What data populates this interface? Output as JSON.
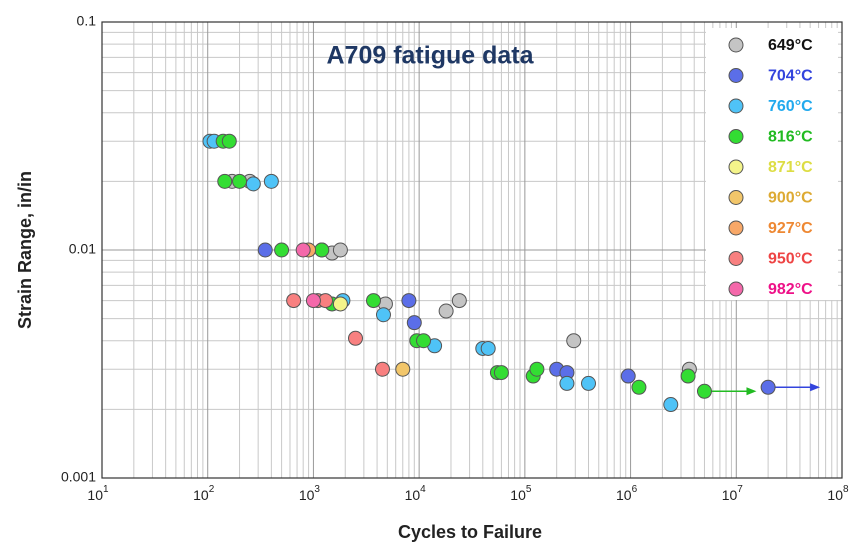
{
  "chart_data": {
    "type": "scatter",
    "title": "A709 fatigue data",
    "x_label": "Cycles to Failure",
    "y_label": "Strain Range, in/in",
    "log_x": true,
    "log_y": true,
    "grid": true,
    "legend": "upper right",
    "xlim": [
      10,
      100000000
    ],
    "ylim": [
      0.001,
      0.1
    ],
    "xticks": [
      {
        "value": 10,
        "label": "10",
        "sup": "1"
      },
      {
        "value": 100,
        "label": "10",
        "sup": "2"
      },
      {
        "value": 1000,
        "label": "10",
        "sup": "3"
      },
      {
        "value": 10000,
        "label": "10",
        "sup": "4"
      },
      {
        "value": 100000,
        "label": "10",
        "sup": "5"
      },
      {
        "value": 1000000,
        "label": "10",
        "sup": "6"
      },
      {
        "value": 10000000,
        "label": "10",
        "sup": "7"
      },
      {
        "value": 100000000,
        "label": "10",
        "sup": "8"
      }
    ],
    "yticks": [
      0.001,
      0.01,
      0.1
    ],
    "series": [
      {
        "name": "649°C",
        "color": "#c4c4c4",
        "label_color": "#111111",
        "x": [
          170,
          250,
          1200,
          1500,
          1800,
          4800,
          18000,
          24000,
          290000,
          3600000
        ],
        "values": [
          0.02,
          0.02,
          0.01,
          0.0097,
          0.01,
          0.0058,
          0.0054,
          0.006,
          0.004,
          0.003
        ]
      },
      {
        "name": "704°C",
        "color": "#5b6ee8",
        "label_color": "#3344dd",
        "x": [
          350,
          8000,
          9000,
          200000,
          250000,
          950000,
          20000000
        ],
        "values": [
          0.01,
          0.006,
          0.0048,
          0.003,
          0.0029,
          0.0028,
          0.0025
        ],
        "runout": [
          false,
          false,
          false,
          false,
          false,
          false,
          true
        ]
      },
      {
        "name": "760°C",
        "color": "#4fc3f7",
        "label_color": "#22aaee",
        "x": [
          105,
          115,
          270,
          400,
          1900,
          4600,
          14000,
          40000,
          45000,
          250000,
          400000,
          2400000
        ],
        "values": [
          0.03,
          0.03,
          0.0195,
          0.02,
          0.006,
          0.0052,
          0.0038,
          0.0037,
          0.0037,
          0.0026,
          0.0026,
          0.0021
        ]
      },
      {
        "name": "816°C",
        "color": "#33dd33",
        "label_color": "#22bb22",
        "x": [
          140,
          160,
          145,
          200,
          500,
          1200,
          1500,
          3700,
          9500,
          11000,
          55000,
          60000,
          120000,
          130000,
          1200000,
          3500000,
          5000000
        ],
        "values": [
          0.03,
          0.03,
          0.02,
          0.02,
          0.01,
          0.01,
          0.0058,
          0.006,
          0.004,
          0.004,
          0.0029,
          0.0029,
          0.0028,
          0.003,
          0.0025,
          0.0028,
          0.0024
        ],
        "runout": [
          false,
          false,
          false,
          false,
          false,
          false,
          false,
          false,
          false,
          false,
          false,
          false,
          false,
          false,
          false,
          false,
          true
        ]
      },
      {
        "name": "871°C",
        "color": "#f4f48a",
        "label_color": "#dddd44",
        "x": [
          1800
        ],
        "values": [
          0.0058
        ]
      },
      {
        "name": "900°C",
        "color": "#f2c66a",
        "label_color": "#ddaa33",
        "x": [
          7000
        ],
        "values": [
          0.003
        ]
      },
      {
        "name": "927°C",
        "color": "#f8a868",
        "label_color": "#ee8833",
        "x": [
          900
        ],
        "values": [
          0.01
        ]
      },
      {
        "name": "950°C",
        "color": "#f88080",
        "label_color": "#ee4444",
        "x": [
          650,
          1100,
          1300,
          2500,
          4500
        ],
        "values": [
          0.006,
          0.006,
          0.006,
          0.0041,
          0.003
        ]
      },
      {
        "name": "982°C",
        "color": "#f468aa",
        "label_color": "#ee1188",
        "x": [
          800,
          1000
        ],
        "values": [
          0.01,
          0.006
        ]
      }
    ]
  }
}
